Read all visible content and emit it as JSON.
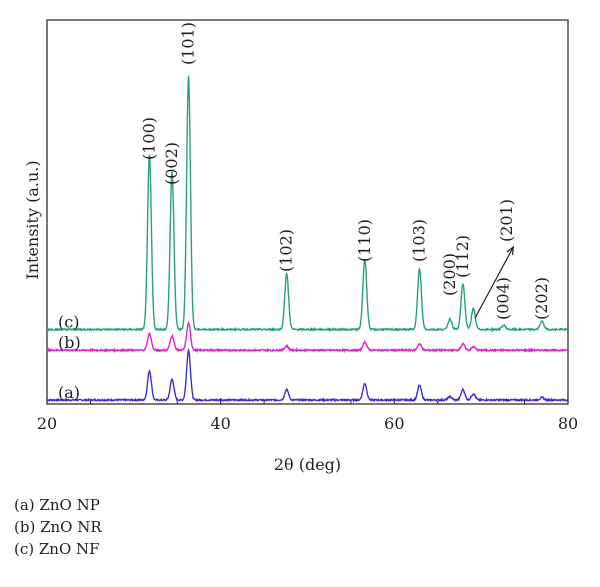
{
  "chart_data": {
    "type": "line",
    "xlabel": "2θ (deg)",
    "ylabel": "Intensity (a.u.)",
    "xlim": [
      20,
      80
    ],
    "xticks": [
      20,
      40,
      60,
      80
    ],
    "ylim": [
      0,
      100
    ],
    "grid": false,
    "series": [
      {
        "name": "(a)",
        "color": "#3b2fd4",
        "baseline": 0,
        "peaks": [
          {
            "x": 31.8,
            "height": 7
          },
          {
            "x": 34.4,
            "height": 5
          },
          {
            "x": 36.3,
            "height": 12
          },
          {
            "x": 47.6,
            "height": 2.5
          },
          {
            "x": 56.6,
            "height": 4
          },
          {
            "x": 62.9,
            "height": 3.5
          },
          {
            "x": 66.4,
            "height": 0.8
          },
          {
            "x": 67.9,
            "height": 2.5
          },
          {
            "x": 69.1,
            "height": 1.5
          },
          {
            "x": 77.0,
            "height": 0.6
          }
        ]
      },
      {
        "name": "(b)",
        "color": "#e020d0",
        "baseline": 12,
        "peaks": [
          {
            "x": 31.8,
            "height": 4
          },
          {
            "x": 34.4,
            "height": 3.5
          },
          {
            "x": 36.3,
            "height": 6.5
          },
          {
            "x": 47.6,
            "height": 1
          },
          {
            "x": 56.6,
            "height": 2
          },
          {
            "x": 62.9,
            "height": 1.5
          },
          {
            "x": 67.9,
            "height": 1.5
          },
          {
            "x": 69.1,
            "height": 0.8
          }
        ]
      },
      {
        "name": "(c)",
        "color": "#2aa07c",
        "baseline": 17,
        "peaks": [
          {
            "x": 31.8,
            "height": 42
          },
          {
            "x": 34.4,
            "height": 38
          },
          {
            "x": 36.3,
            "height": 61
          },
          {
            "x": 47.6,
            "height": 13.5
          },
          {
            "x": 56.6,
            "height": 17
          },
          {
            "x": 62.9,
            "height": 14.5
          },
          {
            "x": 66.4,
            "height": 2.5
          },
          {
            "x": 67.9,
            "height": 11
          },
          {
            "x": 69.1,
            "height": 5
          },
          {
            "x": 72.6,
            "height": 1
          },
          {
            "x": 77.0,
            "height": 2
          }
        ]
      }
    ],
    "annotations": [
      {
        "text": "(100)",
        "x": 31.8
      },
      {
        "text": "(002)",
        "x": 34.4
      },
      {
        "text": "(101)",
        "x": 36.3
      },
      {
        "text": "(102)",
        "x": 47.6
      },
      {
        "text": "(110)",
        "x": 56.6
      },
      {
        "text": "(103)",
        "x": 62.9
      },
      {
        "text": "(200)",
        "x": 66.4
      },
      {
        "text": "(112)",
        "x": 67.9
      },
      {
        "text": "(201)",
        "x": 69.1
      },
      {
        "text": "(004)",
        "x": 72.6
      },
      {
        "text": "(202)",
        "x": 77.0
      }
    ]
  },
  "legend": [
    {
      "label": "(a) ZnO NP"
    },
    {
      "label": "(b) ZnO NR"
    },
    {
      "label": "(c) ZnO NF"
    }
  ]
}
